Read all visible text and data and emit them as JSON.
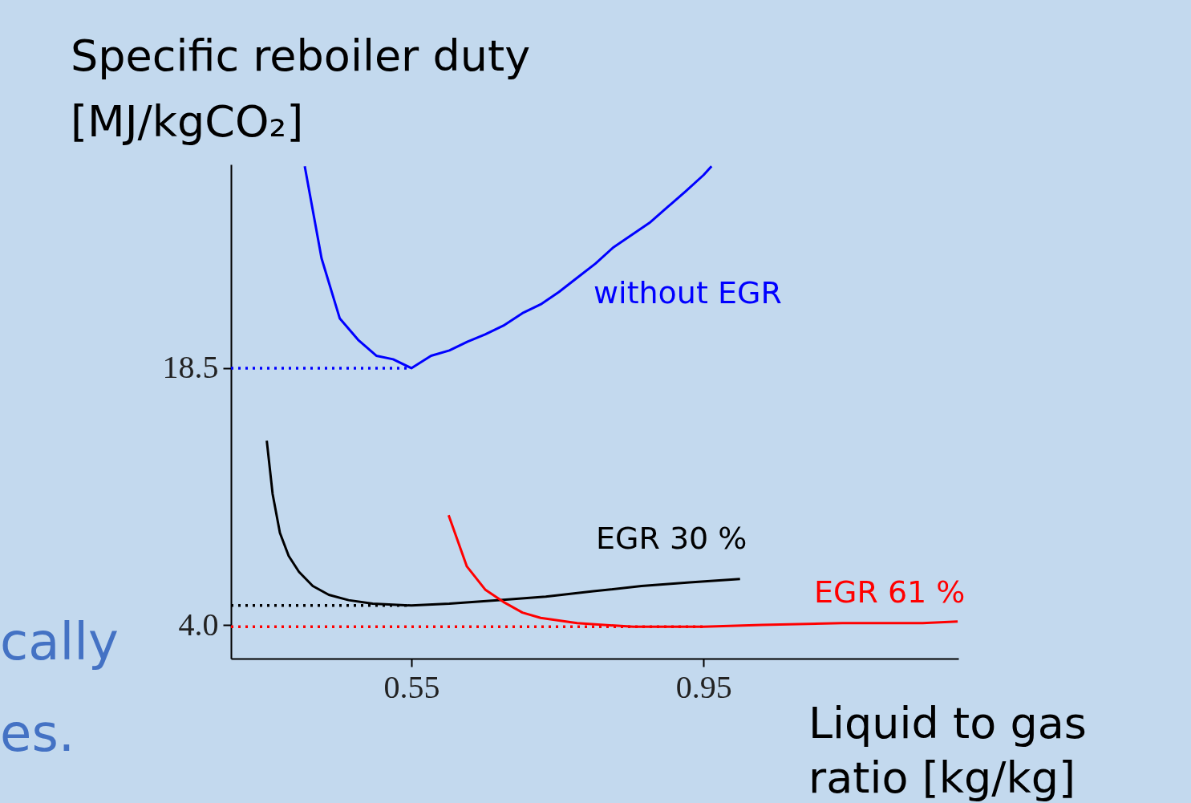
{
  "chart_data": {
    "type": "line",
    "xlabel": "Liquid to gas ratio [kg/kg]",
    "ylabel": "Specific reboiler duty [MJ/kgCO₂]",
    "xlim": [
      0.303,
      1.299
    ],
    "ylim": [
      2.1,
      30.0
    ],
    "xticks": [
      0.55,
      0.95
    ],
    "yticks": [
      {
        "value": 18.5,
        "label": "18.5"
      },
      {
        "value": 4.0,
        "label": "4.0"
      }
    ],
    "grid": false,
    "marker": "none",
    "annotations": [
      "cally",
      "es."
    ],
    "series": [
      {
        "name": "without EGR",
        "color": "#0000ff",
        "line_style": "solid",
        "x": [
          0.404,
          0.427,
          0.452,
          0.477,
          0.502,
          0.525,
          0.55,
          0.577,
          0.602,
          0.627,
          0.651,
          0.676,
          0.702,
          0.727,
          0.752,
          0.777,
          0.802,
          0.826,
          0.851,
          0.876,
          0.901,
          0.926,
          0.95,
          0.961
        ],
        "values": [
          29.9,
          24.7,
          21.3,
          20.1,
          19.2,
          19.0,
          18.5,
          19.2,
          19.5,
          20.0,
          20.4,
          20.9,
          21.6,
          22.1,
          22.8,
          23.6,
          24.4,
          25.3,
          26.0,
          26.7,
          27.6,
          28.5,
          29.4,
          29.9
        ]
      },
      {
        "name": "EGR 30 %",
        "color": "#000000",
        "line_style": "solid",
        "x": [
          0.352,
          0.36,
          0.37,
          0.382,
          0.396,
          0.415,
          0.437,
          0.464,
          0.497,
          0.55,
          0.602,
          0.668,
          0.734,
          0.799,
          0.865,
          0.931,
          1.0
        ],
        "values": [
          14.4,
          11.4,
          9.2,
          7.9,
          7.0,
          6.2,
          5.7,
          5.4,
          5.2,
          5.1,
          5.2,
          5.4,
          5.6,
          5.9,
          6.2,
          6.4,
          6.6
        ]
      },
      {
        "name": "EGR 61 %",
        "color": "#ff0000",
        "line_style": "solid",
        "x": [
          0.601,
          0.626,
          0.651,
          0.676,
          0.702,
          0.727,
          0.777,
          0.854,
          0.95,
          1.03,
          1.14,
          1.25,
          1.298
        ],
        "values": [
          10.2,
          7.3,
          6.0,
          5.3,
          4.7,
          4.4,
          4.1,
          3.9,
          3.9,
          4.0,
          4.1,
          4.1,
          4.2
        ]
      },
      {
        "color": "#0000ff",
        "line_style": "dotted",
        "x": [
          0.303,
          0.55
        ],
        "values": [
          18.5,
          18.5
        ]
      },
      {
        "color": "#000000",
        "line_style": "dotted",
        "x": [
          0.303,
          0.55
        ],
        "values": [
          5.1,
          5.1
        ]
      },
      {
        "color": "#ff0000",
        "line_style": "dotted",
        "x": [
          0.303,
          0.95
        ],
        "values": [
          3.9,
          3.9
        ]
      }
    ]
  }
}
